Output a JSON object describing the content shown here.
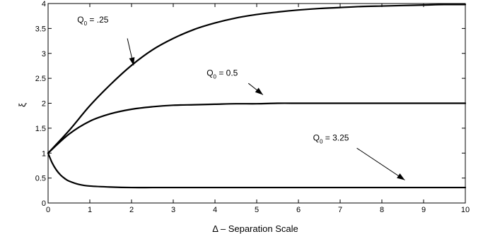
{
  "chart_data": {
    "type": "line",
    "title": "",
    "xlabel": "Δ – Separation Scale",
    "ylabel": "ξ",
    "xlim": [
      0,
      10
    ],
    "ylim": [
      0,
      4
    ],
    "xticks": [
      "0",
      "1",
      "2",
      "3",
      "4",
      "5",
      "6",
      "7",
      "8",
      "9",
      "10"
    ],
    "yticks": [
      "0",
      "0.5",
      "1",
      "1.5",
      "2",
      "2.5",
      "3",
      "3.5",
      "4"
    ],
    "grid": false,
    "legend": "none",
    "line_color": "#000000",
    "series": [
      {
        "label_main": "Q",
        "label_sub": "0",
        "label_rest": " = .25",
        "x": [
          0,
          0.5,
          1,
          1.5,
          2,
          2.5,
          3,
          3.5,
          4,
          4.5,
          5,
          5.5,
          6,
          6.5,
          7,
          7.5,
          8,
          8.5,
          9,
          9.5,
          10
        ],
        "y": [
          1,
          1.45,
          1.95,
          2.38,
          2.76,
          3.07,
          3.3,
          3.48,
          3.61,
          3.71,
          3.78,
          3.83,
          3.87,
          3.9,
          3.92,
          3.94,
          3.95,
          3.96,
          3.97,
          3.98,
          3.98
        ]
      },
      {
        "label_main": "Q",
        "label_sub": "0",
        "label_rest": " = 0.5",
        "x": [
          0,
          0.5,
          1,
          1.5,
          2,
          2.5,
          3,
          3.5,
          4,
          4.5,
          5,
          5.5,
          6,
          6.5,
          7,
          7.5,
          8,
          8.5,
          9,
          9.5,
          10
        ],
        "y": [
          1,
          1.38,
          1.64,
          1.79,
          1.88,
          1.93,
          1.96,
          1.97,
          1.98,
          1.99,
          1.99,
          2.0,
          2.0,
          2.0,
          2.0,
          2.0,
          2.0,
          2.0,
          2.0,
          2.0,
          2.0
        ]
      },
      {
        "label_main": "Q",
        "label_sub": "0",
        "label_rest": " = 3.25",
        "x": [
          0,
          0.1,
          0.2,
          0.3,
          0.4,
          0.5,
          0.75,
          1,
          1.5,
          2,
          2.5,
          3,
          4,
          5,
          6,
          7,
          8,
          9,
          10
        ],
        "y": [
          1,
          0.8,
          0.66,
          0.56,
          0.49,
          0.44,
          0.37,
          0.34,
          0.32,
          0.31,
          0.31,
          0.31,
          0.31,
          0.31,
          0.31,
          0.31,
          0.31,
          0.31,
          0.31
        ]
      }
    ],
    "annotations": [
      {
        "series": 0,
        "text_x": 0.7,
        "text_y": 3.62,
        "tail_x": 1.9,
        "tail_y": 3.3,
        "head_x": 2.05,
        "head_y": 2.76
      },
      {
        "series": 1,
        "text_x": 3.8,
        "text_y": 2.55,
        "tail_x": 4.8,
        "tail_y": 2.4,
        "head_x": 5.15,
        "head_y": 2.17
      },
      {
        "series": 2,
        "text_x": 6.35,
        "text_y": 1.25,
        "tail_x": 7.4,
        "tail_y": 1.1,
        "head_x": 8.55,
        "head_y": 0.46
      }
    ]
  }
}
